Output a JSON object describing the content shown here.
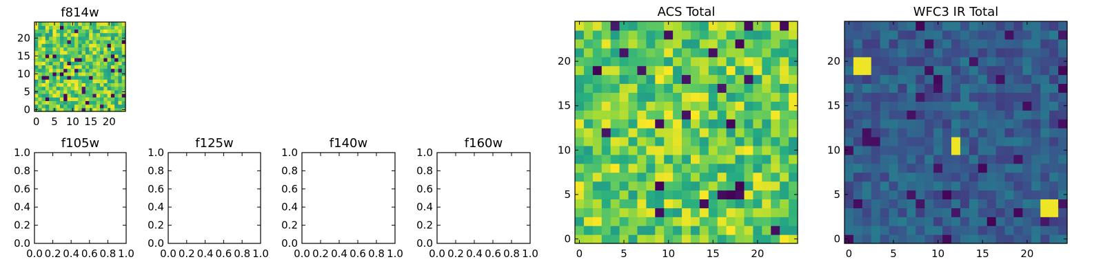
{
  "chart_data": [
    {
      "type": "heatmap",
      "title": "f814w",
      "size": [
        25,
        25
      ],
      "xticks": [
        0,
        5,
        10,
        15,
        20
      ],
      "yticks": [
        0,
        5,
        10,
        15,
        20
      ],
      "xlim": [
        -0.5,
        24.5
      ],
      "ylim": [
        -0.5,
        24.5
      ],
      "colormap": "viridis",
      "values_note": "noise field, mostly high (green-yellow) values",
      "seed": 814,
      "value_range": [
        0.55,
        1.0
      ],
      "dark_fraction": 0.04
    },
    {
      "type": "empty",
      "title": "f105w",
      "xticks": [
        "0.0",
        "0.2",
        "0.4",
        "0.6",
        "0.8",
        "1.0"
      ],
      "yticks": [
        "0.0",
        "0.2",
        "0.4",
        "0.6",
        "0.8",
        "1.0"
      ],
      "xlim": [
        0,
        1
      ],
      "ylim": [
        0,
        1
      ]
    },
    {
      "type": "empty",
      "title": "f125w",
      "xticks": [
        "0.0",
        "0.2",
        "0.4",
        "0.6",
        "0.8",
        "1.0"
      ],
      "yticks": [
        "0.0",
        "0.2",
        "0.4",
        "0.6",
        "0.8",
        "1.0"
      ],
      "xlim": [
        0,
        1
      ],
      "ylim": [
        0,
        1
      ]
    },
    {
      "type": "empty",
      "title": "f140w",
      "xticks": [
        "0.0",
        "0.2",
        "0.4",
        "0.6",
        "0.8",
        "1.0"
      ],
      "yticks": [
        "0.0",
        "0.2",
        "0.4",
        "0.6",
        "0.8",
        "1.0"
      ],
      "xlim": [
        0,
        1
      ],
      "ylim": [
        0,
        1
      ]
    },
    {
      "type": "empty",
      "title": "f160w",
      "xticks": [
        "0.0",
        "0.2",
        "0.4",
        "0.6",
        "0.8",
        "1.0"
      ],
      "yticks": [
        "0.0",
        "0.2",
        "0.4",
        "0.6",
        "0.8",
        "1.0"
      ],
      "xlim": [
        0,
        1
      ],
      "ylim": [
        0,
        1
      ]
    },
    {
      "type": "heatmap",
      "title": "ACS Total",
      "size": [
        25,
        25
      ],
      "xticks": [
        0,
        5,
        10,
        15,
        20
      ],
      "yticks": [
        0,
        5,
        10,
        15,
        20
      ],
      "xlim": [
        -0.5,
        24.5
      ],
      "ylim": [
        -0.5,
        24.5
      ],
      "colormap": "viridis",
      "seed": 1234,
      "value_range": [
        0.55,
        1.0
      ],
      "dark_fraction": 0.04
    },
    {
      "type": "heatmap",
      "title": "WFC3 IR Total",
      "size": [
        25,
        25
      ],
      "xticks": [
        0,
        5,
        10,
        15,
        20
      ],
      "yticks": [
        0,
        5,
        10,
        15,
        20
      ],
      "xlim": [
        -0.5,
        24.5
      ],
      "ylim": [
        -0.5,
        24.5
      ],
      "colormap": "viridis",
      "seed": 4242,
      "value_range": [
        0.18,
        0.42
      ],
      "dark_fraction": 0.05,
      "bright_spots": [
        {
          "x": 1,
          "y": 19,
          "w": 2,
          "h": 2
        },
        {
          "x": 12,
          "y": 10,
          "w": 1,
          "h": 2
        },
        {
          "x": 22,
          "y": 3,
          "w": 2,
          "h": 2
        }
      ]
    }
  ]
}
